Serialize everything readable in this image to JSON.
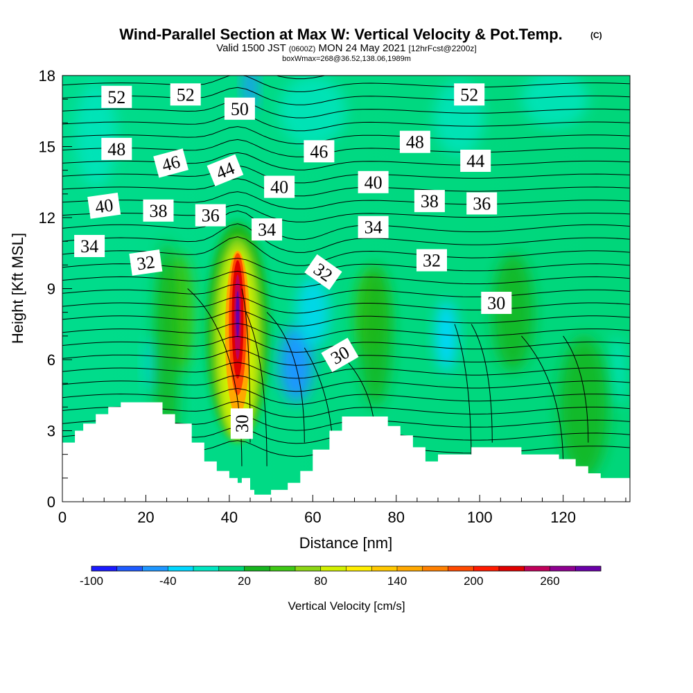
{
  "chart_data": {
    "type": "heatmap",
    "title": "Wind-Parallel Section at Max W: Vertical Velocity & Pot.Temp.",
    "title_mark": "(C)",
    "subtitle": {
      "valid_prefix": "Valid 1500 JST",
      "utc": "(0600Z)",
      "date": "MON 24 May 2021",
      "forecast": "[12hrFcst@2200z]"
    },
    "box_note": "boxWmax=268@36.52,138.06,1989m",
    "xlabel": "Distance [nm]",
    "ylabel": "Height [Kft MSL]",
    "xlim": [
      0,
      136
    ],
    "ylim": [
      0,
      18
    ],
    "x_ticks": [
      0,
      20,
      40,
      60,
      80,
      100,
      120
    ],
    "y_ticks": [
      0,
      3,
      6,
      9,
      12,
      15,
      18
    ],
    "grid": false,
    "colorbar": {
      "title": "Vertical Velocity [cm/s]",
      "tick_labels": [
        "-100",
        "-40",
        "20",
        "80",
        "140",
        "200",
        "260"
      ],
      "colors": [
        "#1a1aff",
        "#1e5bff",
        "#1e96ff",
        "#00d7ff",
        "#00e5c2",
        "#00d67a",
        "#16b51e",
        "#3ec814",
        "#8cd614",
        "#d2f000",
        "#ffee00",
        "#ffc800",
        "#ffa800",
        "#ff8000",
        "#ff4a00",
        "#ff1a00",
        "#e00000",
        "#c0005a",
        "#8e0090",
        "#6a00a8"
      ]
    },
    "terrain_profile": {
      "distance_nm": [
        0,
        3,
        3,
        5,
        5,
        8,
        8,
        11,
        11,
        14,
        14,
        19,
        19,
        24,
        24,
        27,
        27,
        31,
        31,
        34,
        34,
        37,
        37,
        40,
        40,
        42,
        42,
        43,
        43,
        44,
        44,
        45,
        45,
        46,
        46,
        50,
        50,
        54,
        54,
        57,
        57,
        60,
        60,
        64,
        64,
        67,
        67,
        78,
        78,
        81,
        81,
        84,
        84,
        87,
        87,
        90,
        90,
        94,
        94,
        98,
        98,
        104,
        104,
        110,
        110,
        119,
        119,
        123,
        123,
        126,
        126,
        129,
        129,
        133,
        133,
        136
      ],
      "height_kft": [
        2.5,
        2.5,
        3.0,
        3.0,
        3.3,
        3.3,
        3.7,
        3.7,
        4.0,
        4.0,
        4.2,
        4.2,
        4.2,
        4.2,
        3.7,
        3.7,
        3.3,
        3.3,
        2.5,
        2.5,
        1.7,
        1.7,
        1.3,
        1.3,
        1.0,
        1.0,
        0.8,
        0.8,
        1.0,
        1.0,
        1.0,
        1.0,
        0.5,
        0.5,
        0.3,
        0.3,
        0.5,
        0.5,
        0.8,
        0.8,
        1.3,
        1.3,
        2.2,
        2.2,
        3.0,
        3.0,
        3.6,
        3.6,
        3.2,
        3.2,
        2.8,
        2.8,
        2.3,
        2.3,
        1.7,
        1.7,
        2.0,
        2.0,
        2.0,
        2.0,
        2.3,
        2.3,
        2.3,
        2.3,
        2.0,
        2.0,
        1.8,
        1.8,
        1.5,
        1.5,
        1.2,
        1.2,
        1.0,
        1.0,
        1.0,
        1.0
      ]
    },
    "vertical_velocity_features": [
      {
        "x": 42,
        "y": 7.5,
        "peak": 268
      },
      {
        "x": 56,
        "y": 5.8,
        "peak": -60
      },
      {
        "x": 45,
        "y": 17.5,
        "peak": -60
      },
      {
        "x": 92,
        "y": 7,
        "peak": -30
      },
      {
        "x": 74,
        "y": 8,
        "peak": 40
      },
      {
        "x": 28,
        "y": 8,
        "peak": 45
      }
    ],
    "contour_labels": [
      {
        "text": "52",
        "x": 13,
        "y": 17.1,
        "angle": 0
      },
      {
        "text": "52",
        "x": 29.5,
        "y": 17.2,
        "angle": 0
      },
      {
        "text": "50",
        "x": 42.5,
        "y": 16.6,
        "angle": 0
      },
      {
        "text": "52",
        "x": 97.5,
        "y": 17.2,
        "angle": 0
      },
      {
        "text": "48",
        "x": 13,
        "y": 14.9,
        "angle": 0
      },
      {
        "text": "46",
        "x": 26,
        "y": 14.3,
        "angle": -15
      },
      {
        "text": "44",
        "x": 39,
        "y": 14.0,
        "angle": -22
      },
      {
        "text": "46",
        "x": 61.5,
        "y": 14.8,
        "angle": 0
      },
      {
        "text": "48",
        "x": 84.5,
        "y": 15.2,
        "angle": 0
      },
      {
        "text": "44",
        "x": 99,
        "y": 14.4,
        "angle": 0
      },
      {
        "text": "40",
        "x": 10,
        "y": 12.5,
        "angle": -8
      },
      {
        "text": "38",
        "x": 23,
        "y": 12.3,
        "angle": 0
      },
      {
        "text": "36",
        "x": 35.5,
        "y": 12.1,
        "angle": 0
      },
      {
        "text": "40",
        "x": 52,
        "y": 13.3,
        "angle": 0
      },
      {
        "text": "40",
        "x": 74.5,
        "y": 13.5,
        "angle": 0
      },
      {
        "text": "38",
        "x": 88,
        "y": 12.7,
        "angle": 0
      },
      {
        "text": "36",
        "x": 100.5,
        "y": 12.6,
        "angle": 0
      },
      {
        "text": "34",
        "x": 6.5,
        "y": 10.8,
        "angle": 0
      },
      {
        "text": "32",
        "x": 20,
        "y": 10.1,
        "angle": -8
      },
      {
        "text": "34",
        "x": 49,
        "y": 11.5,
        "angle": 0
      },
      {
        "text": "34",
        "x": 74.5,
        "y": 11.6,
        "angle": 0
      },
      {
        "text": "32",
        "x": 62.5,
        "y": 9.7,
        "angle": 35
      },
      {
        "text": "32",
        "x": 88.5,
        "y": 10.2,
        "angle": 0
      },
      {
        "text": "30",
        "x": 104,
        "y": 8.4,
        "angle": 0
      },
      {
        "text": "30",
        "x": 66.5,
        "y": 6.2,
        "angle": -30
      },
      {
        "text": "30",
        "x": 43,
        "y": 3.3,
        "angle": -90
      }
    ]
  }
}
